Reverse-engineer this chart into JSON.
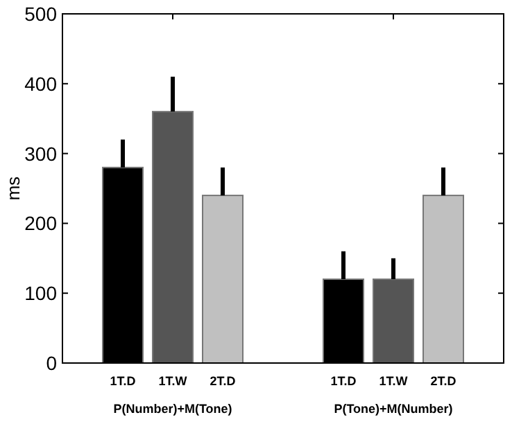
{
  "chart_data": {
    "type": "bar",
    "ylabel": "ms",
    "categories": [
      "P(Number)+M(Tone)",
      "P(Tone)+M(Number)"
    ],
    "series": [
      {
        "name": "1T.D",
        "color": "#000000",
        "values": [
          280,
          120
        ],
        "errors": [
          [
            280,
            320
          ],
          [
            120,
            160
          ]
        ]
      },
      {
        "name": "1T.W",
        "color": "#555555",
        "values": [
          360,
          120
        ],
        "errors": [
          [
            360,
            410
          ],
          [
            120,
            150
          ]
        ]
      },
      {
        "name": "2T.D",
        "color": "#c0c0c0",
        "values": [
          240,
          240
        ],
        "errors": [
          [
            240,
            280
          ],
          [
            240,
            280
          ]
        ]
      }
    ],
    "ylim": [
      0,
      500
    ],
    "yticks": [
      0,
      100,
      200,
      300,
      400,
      500
    ]
  }
}
